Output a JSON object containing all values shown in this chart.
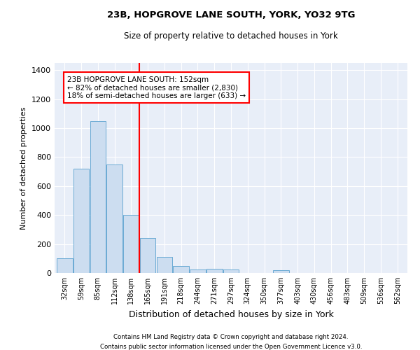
{
  "title_line1": "23B, HOPGROVE LANE SOUTH, YORK, YO32 9TG",
  "title_line2": "Size of property relative to detached houses in York",
  "xlabel": "Distribution of detached houses by size in York",
  "ylabel": "Number of detached properties",
  "footer_line1": "Contains HM Land Registry data © Crown copyright and database right 2024.",
  "footer_line2": "Contains public sector information licensed under the Open Government Licence v3.0.",
  "bin_labels": [
    "32sqm",
    "59sqm",
    "85sqm",
    "112sqm",
    "138sqm",
    "165sqm",
    "191sqm",
    "218sqm",
    "244sqm",
    "271sqm",
    "297sqm",
    "324sqm",
    "350sqm",
    "377sqm",
    "403sqm",
    "430sqm",
    "456sqm",
    "483sqm",
    "509sqm",
    "536sqm",
    "562sqm"
  ],
  "bar_values": [
    100,
    720,
    1050,
    750,
    400,
    240,
    110,
    48,
    25,
    30,
    25,
    0,
    0,
    20,
    0,
    0,
    0,
    0,
    0,
    0,
    0
  ],
  "bar_color": "#ccddf0",
  "bar_edge_color": "#6aaad4",
  "vline_x_index": 4.5,
  "vline_color": "red",
  "annotation_text": "23B HOPGROVE LANE SOUTH: 152sqm\n← 82% of detached houses are smaller (2,830)\n18% of semi-detached houses are larger (633) →",
  "ylim": [
    0,
    1450
  ],
  "yticks": [
    0,
    200,
    400,
    600,
    800,
    1000,
    1200,
    1400
  ],
  "plot_bg_color": "#e8eef8",
  "grid_color": "#ffffff"
}
